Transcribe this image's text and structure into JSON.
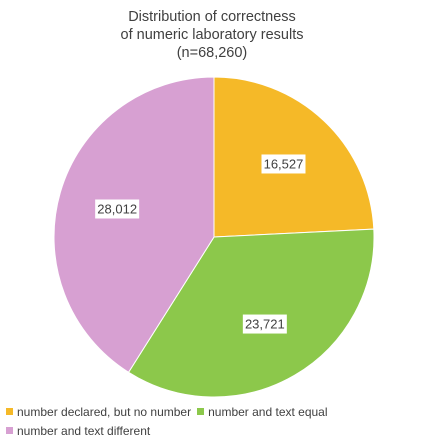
{
  "chart_data": {
    "type": "pie",
    "title_lines": [
      "Distribution of correctness",
      "of numeric laboratory results",
      "(n=68,260)"
    ],
    "slices": [
      {
        "name": "number declared, but no number",
        "value": 16527,
        "label": "16,527",
        "color": "#F5B928"
      },
      {
        "name": "number and text equal",
        "value": 23721,
        "label": "23,721",
        "color": "#8CC84B"
      },
      {
        "name": "number and text different",
        "value": 28012,
        "label": "28,012",
        "color": "#D7A0D2"
      }
    ],
    "legend_placement": "bottom-left"
  }
}
